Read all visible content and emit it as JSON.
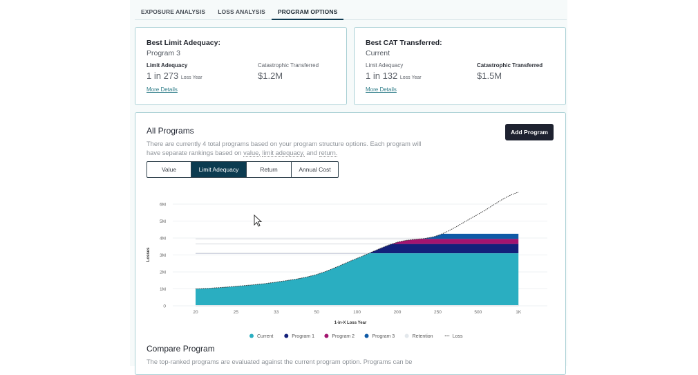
{
  "tabs": [
    "EXPOSURE ANALYSIS",
    "LOSS ANALYSIS",
    "PROGRAM OPTIONS"
  ],
  "active_tab": "PROGRAM OPTIONS",
  "cards": [
    {
      "title": "Best Limit Adequacy:",
      "subtitle": "Program 3",
      "m1_label": "Limit Adequacy",
      "m1_value": "1 in 273",
      "m1_unit": "Loss Year",
      "m2_label": "Catastrophic Transferred",
      "m2_value": "$1.2M",
      "link": "More Details"
    },
    {
      "title": "Best CAT Transferred:",
      "subtitle": "Current",
      "m1_label": "Limit Adequacy",
      "m1_value": "1 in 132",
      "m1_unit": "Loss Year",
      "m2_label": "Catastrophic Transferred",
      "m2_value": "$1.5M",
      "link": "More Details"
    }
  ],
  "all_programs": {
    "title": "All Programs",
    "add_button": "Add Program",
    "desc_1": "There are currently 4 total programs based on your program structure options. Each program will have separate rankings based on ",
    "desc_value": "value,",
    "desc_limit": "limit adequacy,",
    "desc_and": " and ",
    "desc_return": "return.",
    "segments": [
      "Value",
      "Limit Adequacy",
      "Return",
      "Annual Cost"
    ],
    "active_segment": "Limit Adequacy"
  },
  "chart_data": {
    "type": "area",
    "xlabel": "1-in-X Loss Year",
    "ylabel": "Losses",
    "categories": [
      "20",
      "25",
      "33",
      "50",
      "100",
      "200",
      "250",
      "500",
      "1K"
    ],
    "yticks": [
      "0",
      "1M",
      "2M",
      "3M",
      "4M",
      "5M",
      "6M"
    ],
    "ylim": [
      0,
      6000000
    ],
    "loss": [
      1000000,
      1150000,
      1400000,
      1850000,
      2800000,
      3750000,
      4150000,
      5400000,
      6700000
    ],
    "layers": [
      {
        "name": "Retention",
        "from": 0,
        "to": 0,
        "color": "#e3e8ec"
      },
      {
        "name": "Current",
        "from": 0,
        "to": 3100000,
        "color": "#2aaec1"
      },
      {
        "name": "Program 1",
        "from": 3100000,
        "to": 3650000,
        "color": "#13207a"
      },
      {
        "name": "Program 2",
        "from": 3650000,
        "to": 3950000,
        "color": "#a3146f"
      },
      {
        "name": "Program 3",
        "from": 3950000,
        "to": 4250000,
        "color": "#0f5aa6"
      }
    ],
    "legend": [
      {
        "name": "Current",
        "color": "#2aaec1"
      },
      {
        "name": "Program 1",
        "color": "#13207a"
      },
      {
        "name": "Program 2",
        "color": "#a3146f"
      },
      {
        "name": "Program 3",
        "color": "#0f5aa6"
      },
      {
        "name": "Retention",
        "color": "#e3e8ec"
      },
      {
        "name": "Loss",
        "color": "#333333"
      }
    ],
    "legend_position": "bottom",
    "grid": true
  },
  "compare": {
    "title": "Compare Program",
    "desc": "The top-ranked programs are evaluated against the current program option. Programs can be"
  }
}
